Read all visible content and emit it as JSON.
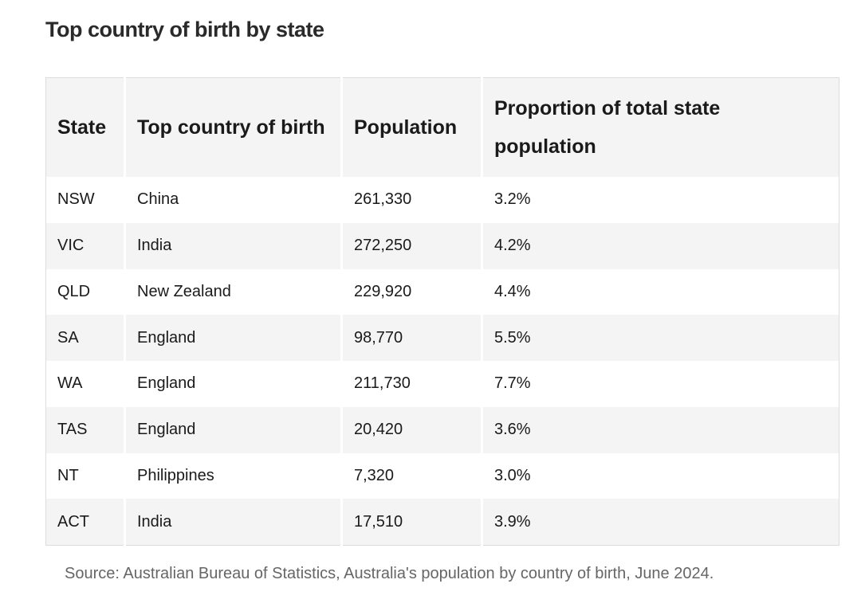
{
  "header": {
    "title": "Top country of birth by state"
  },
  "table": {
    "columns": [
      "State",
      "Top country of birth",
      "Population",
      "Proportion of total state population"
    ],
    "rows": [
      [
        "NSW",
        "China",
        "261,330",
        "3.2%"
      ],
      [
        "VIC",
        "India",
        "272,250",
        "4.2%"
      ],
      [
        "QLD",
        "New Zealand",
        "229,920",
        "4.4%"
      ],
      [
        "SA",
        "England",
        "98,770",
        "5.5%"
      ],
      [
        "WA",
        "England",
        "211,730",
        "7.7%"
      ],
      [
        "TAS",
        "England",
        "20,420",
        "3.6%"
      ],
      [
        "NT",
        "Philippines",
        "7,320",
        "3.0%"
      ],
      [
        "ACT",
        "India",
        "17,510",
        "3.9%"
      ]
    ]
  },
  "footer": {
    "source": "Source: Australian Bureau of Statistics, Australia's population by country of birth, June 2024."
  }
}
